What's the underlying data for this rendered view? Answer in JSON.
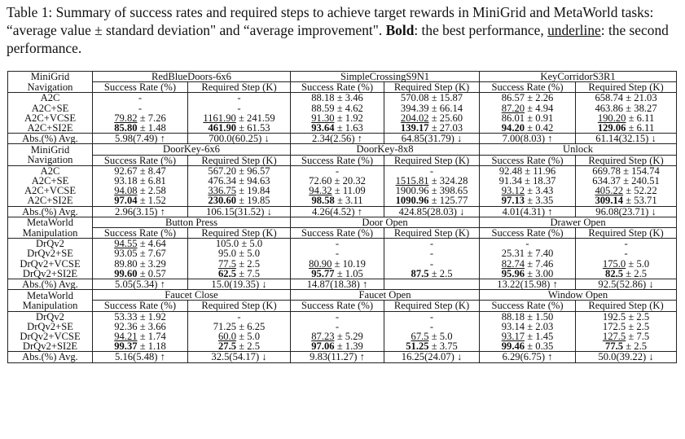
{
  "caption": {
    "prefix": "Table 1: Summary of success rates and required steps to achieve target rewards in MiniGrid and MetaWorld tasks: “average value ± standard deviation\" and “average improvement\". ",
    "bold_word": "Bold",
    "mid": ": the best performance, ",
    "underline_word": "underline",
    "suffix": ": the second performance."
  },
  "col_headers": [
    "Success Rate (%)",
    "Required Step (K)"
  ],
  "sections": [
    {
      "label1": "MiniGrid",
      "label2": "Navigation",
      "tasks": [
        "RedBlueDoors-6x6",
        "SimpleCrossingS9N1",
        "KeyCorridorS3R1"
      ],
      "rows": [
        {
          "method": "A2C",
          "cells": [
            {
              "t": "-"
            },
            {
              "t": "-"
            },
            {
              "t": "88.18 ± 3.46"
            },
            {
              "t": "570.08 ± 15.87"
            },
            {
              "t": "86.57 ± 2.26"
            },
            {
              "t": "658.74 ± 21.03"
            }
          ]
        },
        {
          "method": "A2C+SE",
          "cells": [
            {
              "t": "-"
            },
            {
              "t": "-"
            },
            {
              "t": "88.59 ± 4.62"
            },
            {
              "t": "394.39 ± 66.14"
            },
            {
              "m": "87.20",
              "r": " ± 4.94",
              "s": "u"
            },
            {
              "t": "463.86 ± 38.27"
            }
          ]
        },
        {
          "method": "A2C+VCSE",
          "cells": [
            {
              "m": "79.82",
              "r": " ± 7.26",
              "s": "u"
            },
            {
              "m": "1161.90",
              "r": " ± 241.59",
              "s": "u"
            },
            {
              "m": "91.30",
              "r": " ± 1.92",
              "s": "u"
            },
            {
              "m": "204.02",
              "r": " ± 25.60",
              "s": "u"
            },
            {
              "t": "86.01 ± 0.91"
            },
            {
              "m": "190.20",
              "r": " ± 6.11",
              "s": "u"
            }
          ]
        },
        {
          "method": "A2C+SI2E",
          "cells": [
            {
              "m": "85.80",
              "r": " ± 1.48",
              "s": "b"
            },
            {
              "m": "461.90",
              "r": " ± 61.53",
              "s": "b"
            },
            {
              "m": "93.64",
              "r": " ± 1.63",
              "s": "b"
            },
            {
              "m": "139.17",
              "r": " ± 27.03",
              "s": "b"
            },
            {
              "m": "94.20",
              "r": " ± 0.42",
              "s": "b"
            },
            {
              "m": "129.06",
              "r": " ± 6.11",
              "s": "b"
            }
          ]
        }
      ],
      "abs": {
        "label": "Abs.(%) Avg.",
        "cells": [
          "5.98(7.49) ↑",
          "700.0(60.25) ↓",
          "2.34(2.56) ↑",
          "64.85(31.79) ↓",
          "7.00(8.03) ↑",
          "61.14(32.15) ↓"
        ]
      }
    },
    {
      "label1": "MiniGrid",
      "label2": "Navigation",
      "tasks": [
        "DoorKey-6x6",
        "DoorKey-8x8",
        "Unlock"
      ],
      "rows": [
        {
          "method": "A2C",
          "cells": [
            {
              "t": "92.67 ± 8.47"
            },
            {
              "t": "567.20 ± 96.57"
            },
            {
              "t": "-"
            },
            {
              "t": "-"
            },
            {
              "t": "92.48 ± 11.96"
            },
            {
              "t": "669.78 ± 154.74"
            }
          ]
        },
        {
          "method": "A2C+SE",
          "cells": [
            {
              "t": "93.18 ± 6.81"
            },
            {
              "t": "476.34 ± 94.63"
            },
            {
              "t": "72.60 ± 20.32"
            },
            {
              "m": "1515.81",
              "r": " ± 324.28",
              "s": "u"
            },
            {
              "t": "91.34 ± 18.37"
            },
            {
              "t": "634.37 ± 240.51"
            }
          ]
        },
        {
          "method": "A2C+VCSE",
          "cells": [
            {
              "m": "94.08",
              "r": " ± 2.58",
              "s": "u"
            },
            {
              "m": "336.75",
              "r": " ± 19.84",
              "s": "u"
            },
            {
              "m": "94.32",
              "r": " ± 11.09",
              "s": "u"
            },
            {
              "t": "1900.96 ± 398.65"
            },
            {
              "m": "93.12",
              "r": " ± 3.43",
              "s": "u"
            },
            {
              "m": "405.22",
              "r": " ± 52.22",
              "s": "u"
            }
          ]
        },
        {
          "method": "A2C+SI2E",
          "cells": [
            {
              "m": "97.04",
              "r": " ± 1.52",
              "s": "b"
            },
            {
              "m": "230.60",
              "r": " ± 19.85",
              "s": "b"
            },
            {
              "m": "98.58",
              "r": " ± 3.11",
              "s": "b"
            },
            {
              "m": "1090.96",
              "r": " ± 125.77",
              "s": "b"
            },
            {
              "m": "97.13",
              "r": " ± 3.35",
              "s": "b"
            },
            {
              "m": "309.14",
              "r": " ± 53.71",
              "s": "b"
            }
          ]
        }
      ],
      "abs": {
        "label": "Abs.(%) Avg.",
        "cells": [
          "2.96(3.15) ↑",
          "106.15(31.52) ↓",
          "4.26(4.52) ↑",
          "424.85(28.03) ↓",
          "4.01(4.31) ↑",
          "96.08(23.71) ↓"
        ]
      }
    },
    {
      "label1": "MetaWorld",
      "label2": "Manipulation",
      "tasks": [
        "Button Press",
        "Door Open",
        "Drawer Open"
      ],
      "rows": [
        {
          "method": "DrQv2",
          "cells": [
            {
              "m": "94.55",
              "r": " ± 4.64",
              "s": "u"
            },
            {
              "t": "105.0 ± 5.0"
            },
            {
              "t": "-"
            },
            {
              "t": "-"
            },
            {
              "t": "-"
            },
            {
              "t": "-"
            }
          ]
        },
        {
          "method": "DrQv2+SE",
          "cells": [
            {
              "t": "93.05 ± 7.67"
            },
            {
              "t": "95.0 ± 5.0"
            },
            {
              "t": "-"
            },
            {
              "t": "-"
            },
            {
              "t": "25.31 ± 7.40"
            },
            {
              "t": "-"
            }
          ]
        },
        {
          "method": "DrQv2+VCSE",
          "cells": [
            {
              "t": "89.80 ± 3.29"
            },
            {
              "m": "77.5",
              "r": " ± 2.5",
              "s": "u"
            },
            {
              "m": "80.90",
              "r": " ± 10.19",
              "s": "u"
            },
            {
              "t": "-"
            },
            {
              "m": "82.74",
              "r": " ± 7.46",
              "s": "u"
            },
            {
              "m": "175.0",
              "r": " ± 5.0",
              "s": "u"
            }
          ]
        },
        {
          "method": "DrQv2+SI2E",
          "cells": [
            {
              "m": "99.60",
              "r": " ± 0.57",
              "s": "b"
            },
            {
              "m": "62.5",
              "r": " ± 7.5",
              "s": "b"
            },
            {
              "m": "95.77",
              "r": " ± 1.05",
              "s": "b"
            },
            {
              "m": "87.5",
              "r": " ± 2.5",
              "s": "b"
            },
            {
              "m": "95.96",
              "r": " ± 3.00",
              "s": "b"
            },
            {
              "m": "82.5",
              "r": " ± 2.5",
              "s": "b"
            }
          ]
        }
      ],
      "abs": {
        "label": "Abs.(%) Avg.",
        "cells": [
          "5.05(5.34) ↑",
          "15.0(19.35) ↓",
          "14.87(18.38) ↑",
          "",
          "13.22(15.98) ↑",
          "92.5(52.86) ↓"
        ]
      }
    },
    {
      "label1": "MetaWorld",
      "label2": "Manipulation",
      "tasks": [
        "Faucet Close",
        "Faucet Open",
        "Window Open"
      ],
      "rows": [
        {
          "method": "DrQv2",
          "cells": [
            {
              "t": "53.33 ± 1.92"
            },
            {
              "t": "-"
            },
            {
              "t": "-"
            },
            {
              "t": "-"
            },
            {
              "t": "88.18 ± 1.50"
            },
            {
              "t": "192.5 ± 2.5"
            }
          ]
        },
        {
          "method": "DrQv2+SE",
          "cells": [
            {
              "t": "92.36 ± 3.66"
            },
            {
              "t": "71.25 ± 6.25"
            },
            {
              "t": "-"
            },
            {
              "t": "-"
            },
            {
              "t": "93.14 ± 2.03"
            },
            {
              "t": "172.5 ± 2.5"
            }
          ]
        },
        {
          "method": "DrQv2+VCSE",
          "cells": [
            {
              "m": "94.21",
              "r": " ± 1.74",
              "s": "u"
            },
            {
              "m": "60.0",
              "r": " ± 5.0",
              "s": "u"
            },
            {
              "m": "87.23",
              "r": " ± 5.29",
              "s": "u"
            },
            {
              "m": "67.5",
              "r": " ± 5.0",
              "s": "u"
            },
            {
              "m": "93.17",
              "r": " ± 1.45",
              "s": "u"
            },
            {
              "m": "127.5",
              "r": " ± 7.5",
              "s": "u"
            }
          ]
        },
        {
          "method": "DrQv2+SI2E",
          "cells": [
            {
              "m": "99.37",
              "r": " ± 1.18",
              "s": "b"
            },
            {
              "m": "27.5",
              "r": " ± 2.5",
              "s": "b"
            },
            {
              "m": "97.06",
              "r": " ± 1.39",
              "s": "b"
            },
            {
              "m": "51.25",
              "r": " ± 3.75",
              "s": "b"
            },
            {
              "m": "99.46",
              "r": " ± 0.35",
              "s": "b"
            },
            {
              "m": "77.5",
              "r": " ± 2.5",
              "s": "b"
            }
          ]
        }
      ],
      "abs": {
        "label": "Abs.(%) Avg.",
        "cells": [
          "5.16(5.48) ↑",
          "32.5(54.17) ↓",
          "9.83(11.27) ↑",
          "16.25(24.07) ↓",
          "6.29(6.75) ↑",
          "50.0(39.22) ↓"
        ]
      }
    }
  ]
}
